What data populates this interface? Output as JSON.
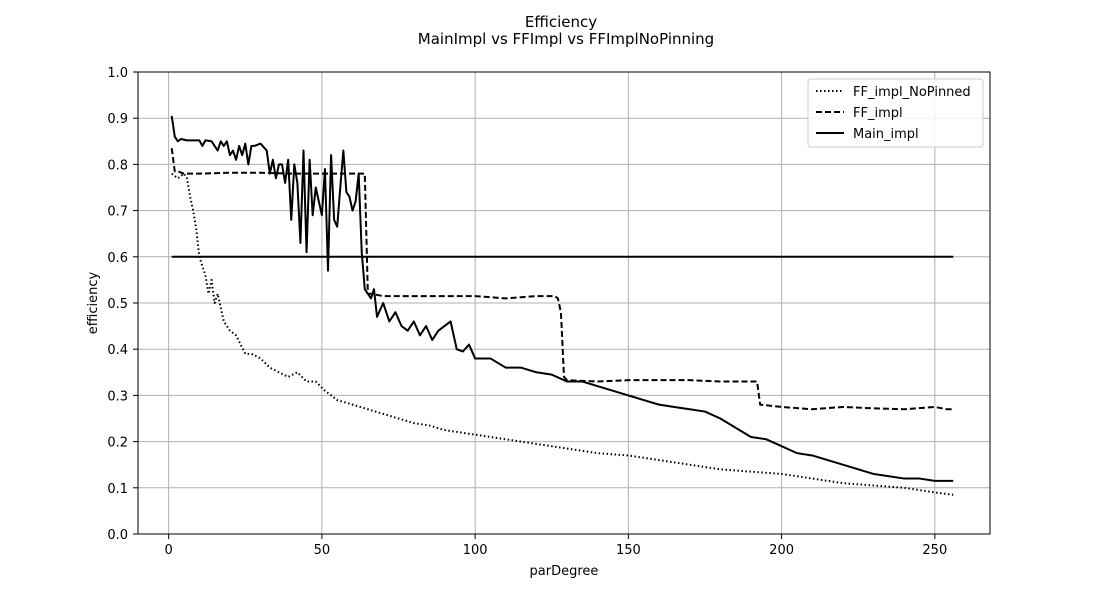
{
  "chart_data": {
    "type": "line",
    "title": "Efficiency",
    "subtitle": "MainImpl vs FFImpl vs FFImplNoPinning",
    "xlabel": "parDegree",
    "ylabel": "efficiency",
    "xlim": [
      -10,
      268
    ],
    "ylim": [
      0,
      1
    ],
    "xticks": [
      0,
      50,
      100,
      150,
      200,
      250
    ],
    "xtick_labels": [
      "0",
      "50",
      "100",
      "150",
      "200",
      "250"
    ],
    "yticks": [
      0,
      0.1,
      0.2,
      0.3,
      0.4,
      0.5,
      0.6,
      0.7,
      0.8,
      0.9,
      1.0
    ],
    "ytick_labels": [
      "0.0",
      "0.1",
      "0.2",
      "0.3",
      "0.4",
      "0.5",
      "0.6",
      "0.7",
      "0.8",
      "0.9",
      "1.0"
    ],
    "grid": true,
    "legend_position": "top-right",
    "series": [
      {
        "name": "FF_impl_NoPinned",
        "style": "dotted",
        "color": "#000000",
        "x": [
          1,
          3,
          5,
          6,
          7,
          8,
          9,
          10,
          11,
          12,
          13,
          14,
          15,
          16,
          18,
          20,
          22,
          25,
          27,
          30,
          33,
          36,
          39,
          42,
          45,
          48,
          51,
          55,
          60,
          65,
          70,
          75,
          80,
          85,
          90,
          95,
          100,
          110,
          120,
          130,
          140,
          150,
          160,
          170,
          180,
          190,
          200,
          210,
          220,
          230,
          240,
          250,
          256
        ],
        "y": [
          0.78,
          0.77,
          0.78,
          0.77,
          0.73,
          0.7,
          0.66,
          0.6,
          0.58,
          0.56,
          0.52,
          0.55,
          0.5,
          0.52,
          0.46,
          0.44,
          0.43,
          0.39,
          0.39,
          0.38,
          0.36,
          0.35,
          0.34,
          0.35,
          0.33,
          0.33,
          0.31,
          0.29,
          0.28,
          0.27,
          0.26,
          0.25,
          0.24,
          0.235,
          0.225,
          0.22,
          0.215,
          0.205,
          0.195,
          0.185,
          0.175,
          0.17,
          0.16,
          0.15,
          0.14,
          0.135,
          0.13,
          0.12,
          0.11,
          0.105,
          0.1,
          0.09,
          0.085
        ]
      },
      {
        "name": "FF_impl",
        "style": "dashed",
        "color": "#000000",
        "x": [
          1,
          2,
          3,
          5,
          10,
          20,
          30,
          40,
          50,
          60,
          63,
          64,
          65,
          66,
          70,
          80,
          90,
          100,
          110,
          120,
          126,
          127,
          128,
          129,
          130,
          140,
          150,
          160,
          170,
          180,
          190,
          191,
          192,
          193,
          200,
          210,
          220,
          230,
          240,
          250,
          254,
          256
        ],
        "y": [
          0.835,
          0.785,
          0.785,
          0.78,
          0.78,
          0.782,
          0.782,
          0.78,
          0.78,
          0.78,
          0.78,
          0.78,
          0.52,
          0.52,
          0.515,
          0.515,
          0.515,
          0.515,
          0.51,
          0.515,
          0.515,
          0.51,
          0.48,
          0.34,
          0.333,
          0.33,
          0.333,
          0.333,
          0.333,
          0.33,
          0.33,
          0.33,
          0.33,
          0.28,
          0.275,
          0.27,
          0.275,
          0.272,
          0.27,
          0.275,
          0.27,
          0.27
        ]
      },
      {
        "name": "Main_impl",
        "style": "solid",
        "color": "#000000",
        "x": [
          1,
          2,
          3,
          4,
          6,
          8,
          10,
          11,
          12,
          14,
          16,
          17,
          18,
          19,
          20,
          21,
          22,
          23,
          24,
          25,
          26,
          27,
          28,
          30,
          32,
          33,
          34,
          35,
          36,
          37,
          38,
          39,
          40,
          41,
          42,
          43,
          44,
          45,
          46,
          47,
          48,
          49,
          50,
          51,
          52,
          53,
          54,
          55,
          56,
          57,
          58,
          59,
          60,
          61,
          62,
          63,
          64,
          65,
          66,
          67,
          68,
          70,
          72,
          74,
          76,
          78,
          80,
          82,
          84,
          86,
          88,
          90,
          92,
          94,
          96,
          98,
          100,
          105,
          110,
          115,
          120,
          125,
          130,
          135,
          140,
          145,
          150,
          155,
          160,
          165,
          170,
          175,
          180,
          185,
          190,
          195,
          200,
          205,
          210,
          215,
          220,
          225,
          230,
          235,
          240,
          245,
          250,
          253,
          256
        ],
        "y": [
          0.905,
          0.86,
          0.85,
          0.855,
          0.852,
          0.852,
          0.852,
          0.84,
          0.852,
          0.85,
          0.83,
          0.85,
          0.84,
          0.85,
          0.82,
          0.83,
          0.81,
          0.84,
          0.82,
          0.845,
          0.8,
          0.84,
          0.84,
          0.845,
          0.83,
          0.78,
          0.81,
          0.77,
          0.8,
          0.8,
          0.76,
          0.81,
          0.68,
          0.8,
          0.76,
          0.63,
          0.83,
          0.61,
          0.81,
          0.69,
          0.75,
          0.72,
          0.69,
          0.79,
          0.57,
          0.82,
          0.68,
          0.665,
          0.75,
          0.83,
          0.74,
          0.73,
          0.7,
          0.72,
          0.78,
          0.61,
          0.53,
          0.52,
          0.51,
          0.53,
          0.47,
          0.5,
          0.46,
          0.48,
          0.45,
          0.44,
          0.46,
          0.43,
          0.45,
          0.42,
          0.44,
          0.45,
          0.46,
          0.4,
          0.395,
          0.41,
          0.38,
          0.38,
          0.36,
          0.36,
          0.35,
          0.345,
          0.33,
          0.33,
          0.32,
          0.31,
          0.3,
          0.29,
          0.28,
          0.275,
          0.27,
          0.265,
          0.25,
          0.23,
          0.21,
          0.205,
          0.19,
          0.175,
          0.17,
          0.16,
          0.15,
          0.14,
          0.13,
          0.125,
          0.12,
          0.12,
          0.115,
          0.115,
          0.115
        ]
      },
      {
        "name": "",
        "style": "solid",
        "color": "#000000",
        "x": [
          1,
          256
        ],
        "y": [
          0.6,
          0.6
        ]
      }
    ]
  }
}
